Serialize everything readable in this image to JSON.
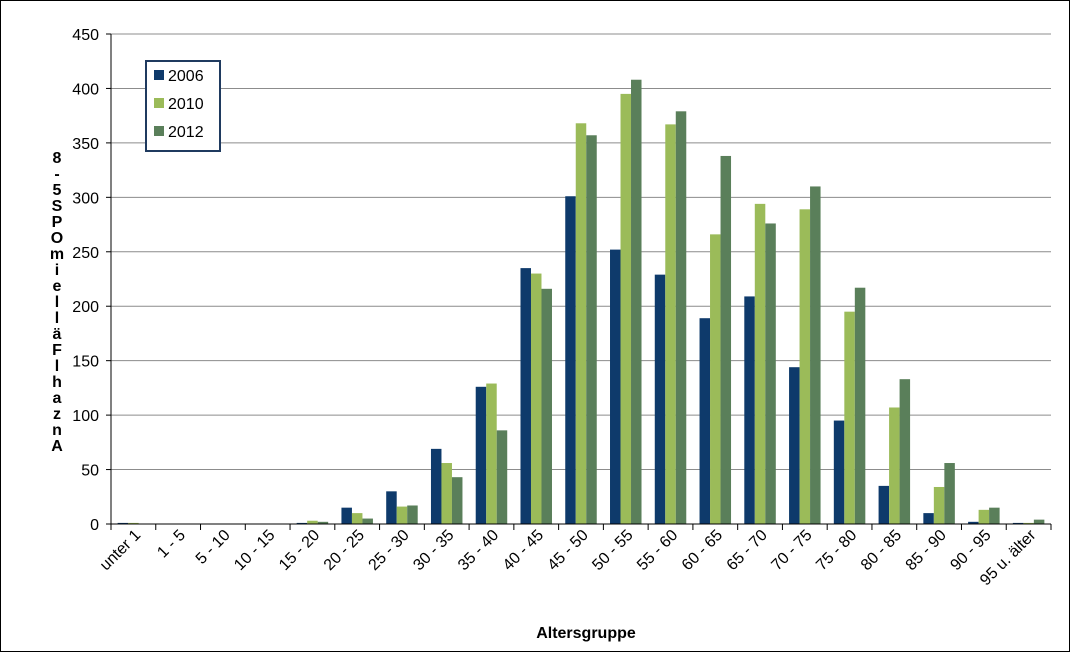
{
  "chart_data": {
    "type": "bar",
    "title": "",
    "xlabel": "Altersgruppe",
    "ylabel": "Anzahl Fälle im OPS 5-8",
    "ylim": [
      0,
      450
    ],
    "yticks": [
      0,
      50,
      100,
      150,
      200,
      250,
      300,
      350,
      400,
      450
    ],
    "grid": true,
    "legend_position": "top-left",
    "categories": [
      "unter 1",
      "1 - 5",
      "5 - 10",
      "10 - 15",
      "15 - 20",
      "20 - 25",
      "25 - 30",
      "30 - 35",
      "35 - 40",
      "40 - 45",
      "45 - 50",
      "50 - 55",
      "55 - 60",
      "60 - 65",
      "65 - 70",
      "70 - 75",
      "75 - 80",
      "80 - 85",
      "85 - 90",
      "90 - 95",
      "95 u. älter"
    ],
    "series": [
      {
        "name": "2006",
        "color": "#0e3a6b",
        "values": [
          1,
          0,
          0,
          0,
          1,
          15,
          30,
          69,
          126,
          235,
          301,
          252,
          229,
          189,
          209,
          144,
          95,
          35,
          10,
          2,
          1
        ]
      },
      {
        "name": "2010",
        "color": "#9bbb59",
        "values": [
          1,
          0,
          0,
          0,
          3,
          10,
          16,
          56,
          129,
          230,
          368,
          395,
          367,
          266,
          294,
          289,
          195,
          107,
          34,
          13,
          1
        ]
      },
      {
        "name": "2012",
        "color": "#5a7f5a",
        "values": [
          0,
          0,
          0,
          0,
          2,
          5,
          17,
          43,
          86,
          216,
          357,
          408,
          379,
          338,
          276,
          310,
          217,
          133,
          56,
          15,
          4
        ]
      }
    ]
  }
}
